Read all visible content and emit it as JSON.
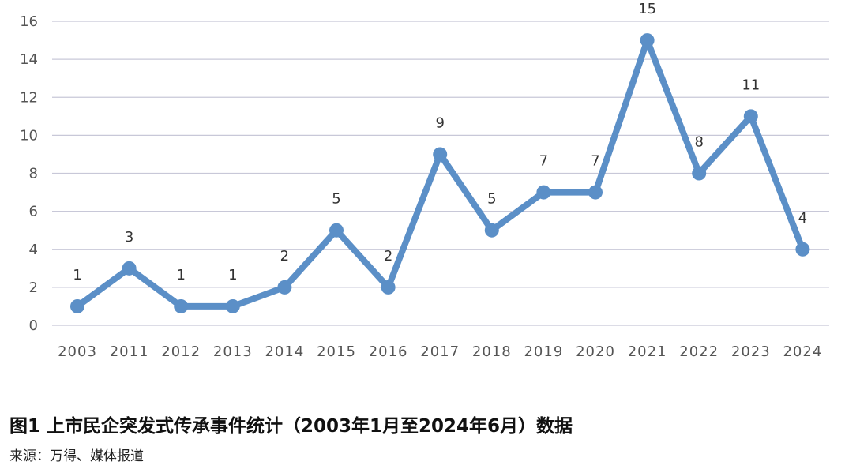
{
  "chart_data": {
    "type": "line",
    "categories": [
      "2003",
      "2011",
      "2012",
      "2013",
      "2014",
      "2015",
      "2016",
      "2017",
      "2018",
      "2019",
      "2020",
      "2021",
      "2022",
      "2023",
      "2024"
    ],
    "values": [
      1,
      3,
      1,
      1,
      2,
      5,
      2,
      9,
      5,
      7,
      7,
      15,
      8,
      11,
      4
    ],
    "yticks": [
      0,
      2,
      4,
      6,
      8,
      10,
      12,
      14,
      16
    ],
    "ylim": [
      0,
      16
    ],
    "grid": true,
    "data_labels": true,
    "line_color": "#5b8fc7",
    "grid_color": "#c8c8d8"
  },
  "caption": {
    "title": "图1 上市民企突发式传承事件统计（2003年1月至2024年6月）数据",
    "source": "来源：万得、媒体报道"
  }
}
